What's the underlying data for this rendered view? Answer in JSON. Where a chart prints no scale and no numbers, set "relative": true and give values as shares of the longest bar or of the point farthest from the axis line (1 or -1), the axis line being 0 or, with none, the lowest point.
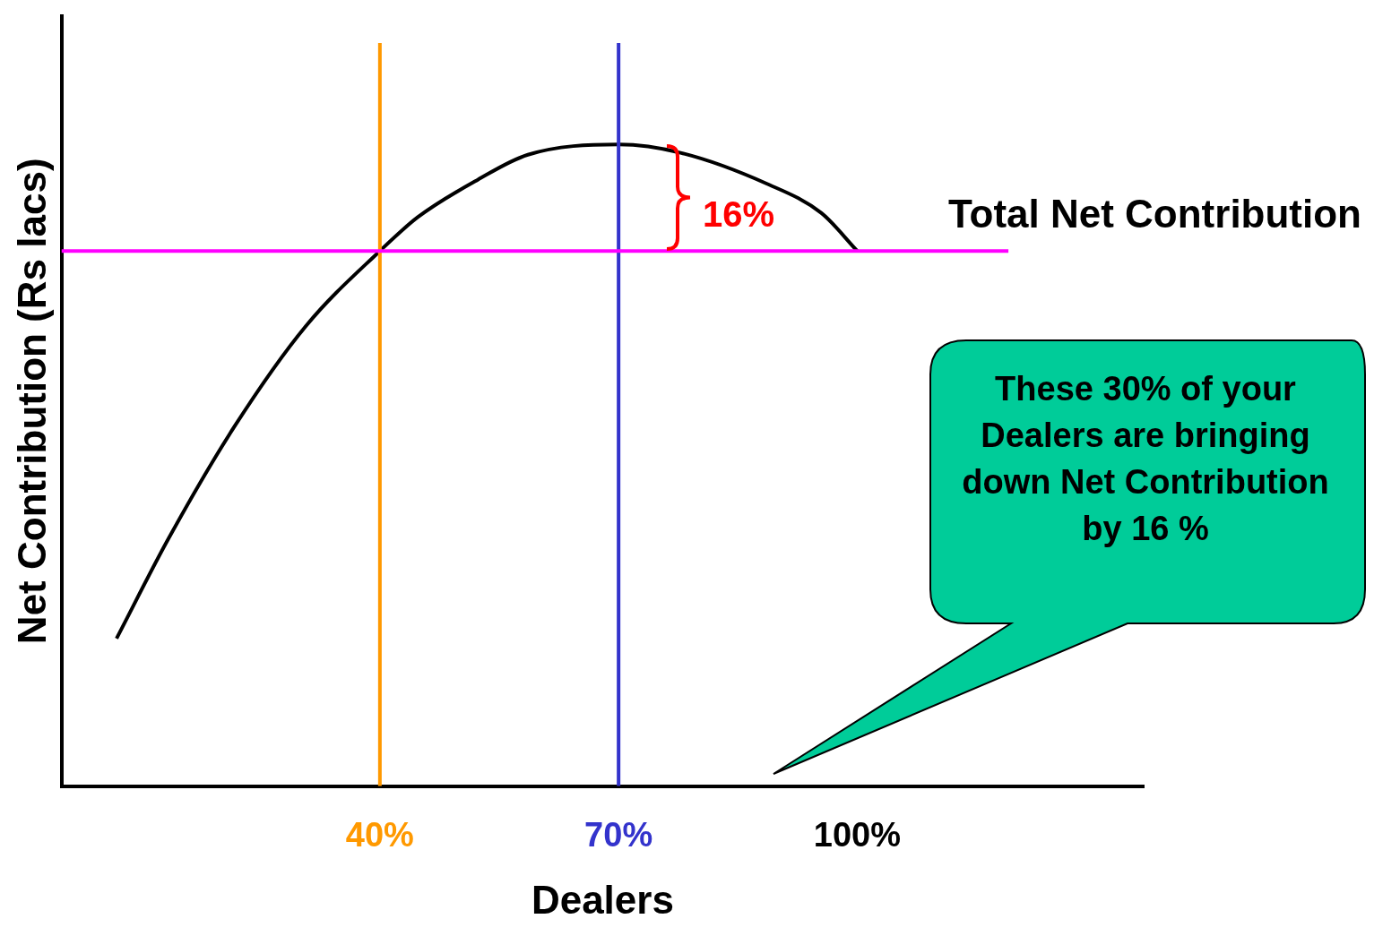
{
  "chart_data": {
    "type": "line",
    "xlabel": "Dealers",
    "ylabel": "Net Contribution (Rs lacs)",
    "relative": true,
    "xlim": [
      0,
      136
    ],
    "xticks": [
      {
        "value": 40,
        "label": "40%"
      },
      {
        "value": 70,
        "label": "70%"
      },
      {
        "value": 100,
        "label": "100%"
      }
    ],
    "series": [
      {
        "color": "#000000",
        "x": [
          6.9,
          13.4,
          21.7,
          30.7,
          40,
          44.8,
          52.3,
          58.6,
          70,
          77.8,
          88.6,
          95.5,
          100
        ],
        "values": [
          0.23,
          0.385,
          0.56,
          0.717,
          0.834,
          0.887,
          0.945,
          0.984,
          1,
          0.987,
          0.939,
          0.893,
          0.834
        ]
      }
    ],
    "ref_lines": [
      {
        "axis": "x",
        "value": 40,
        "color": "#ff9900"
      },
      {
        "axis": "x",
        "value": 70,
        "color": "#3333cc"
      },
      {
        "axis": "y",
        "value": 0.834,
        "label": "Total Net Contribution",
        "color": "#ff00ff"
      }
    ],
    "annotations": [
      "16%",
      "These 30% of your Dealers are bringing down Net Contribution by 16 %"
    ],
    "grid": false,
    "legend": false,
    "marker": "none",
    "line_style": "solid"
  }
}
